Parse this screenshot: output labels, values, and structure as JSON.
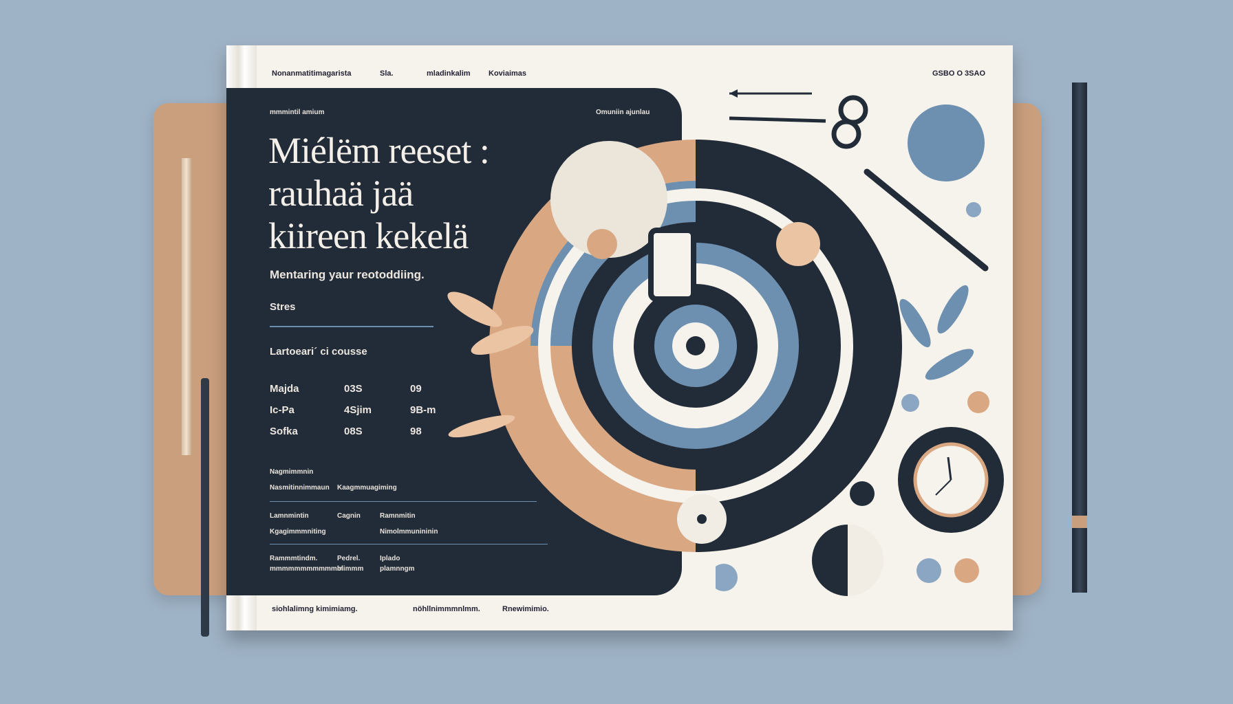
{
  "nav": [
    "Nonanmatitimagarista",
    "Sla.",
    "mladinkalim",
    "Koviaimas"
  ],
  "code": "GSBO O 3SAO",
  "panel_top_left": "mmmintil amium",
  "panel_top_right": "Omuniin ajunlau",
  "title": [
    "Miélëm reeset :",
    "rauhaä jaä",
    "kiireen kekelä"
  ],
  "subtitle": "Mentaring yaur reotoddiing.",
  "section": "Stres",
  "section2": "Lartoeari´ ci cousse",
  "table": [
    [
      "Majda",
      "03S",
      "09"
    ],
    [
      "Ic-Pa",
      "4Sjim",
      "9B-m"
    ],
    [
      "Sofka",
      "08S",
      "98"
    ]
  ],
  "block1": [
    "Nagmimmnin",
    "Nasmitinnimmaun",
    "Kaagmmuagiming"
  ],
  "block2": [
    "Lamnmintin",
    "Cagnin",
    "Ramnmitin",
    "Kgagimmmniting",
    "Nimolmmunininin"
  ],
  "block3": [
    "Rammmtindm.",
    "Pedrel.",
    "Iplado",
    "mmmmmmmmmmmm",
    "blimmm",
    "plamnngm"
  ],
  "footer": [
    "siohlalimng kimimiamg.",
    "nöhllnimmmnlmm.",
    "Rnewimimio."
  ],
  "colors": {
    "navy": "#222c38",
    "tan": "#d9a882",
    "blue": "#6d8fb0",
    "cream": "#f6f2ec"
  },
  "icons": [
    "scissors-icon",
    "pencil-icon",
    "clock-icon",
    "bottle-icon",
    "leaf-icon"
  ]
}
